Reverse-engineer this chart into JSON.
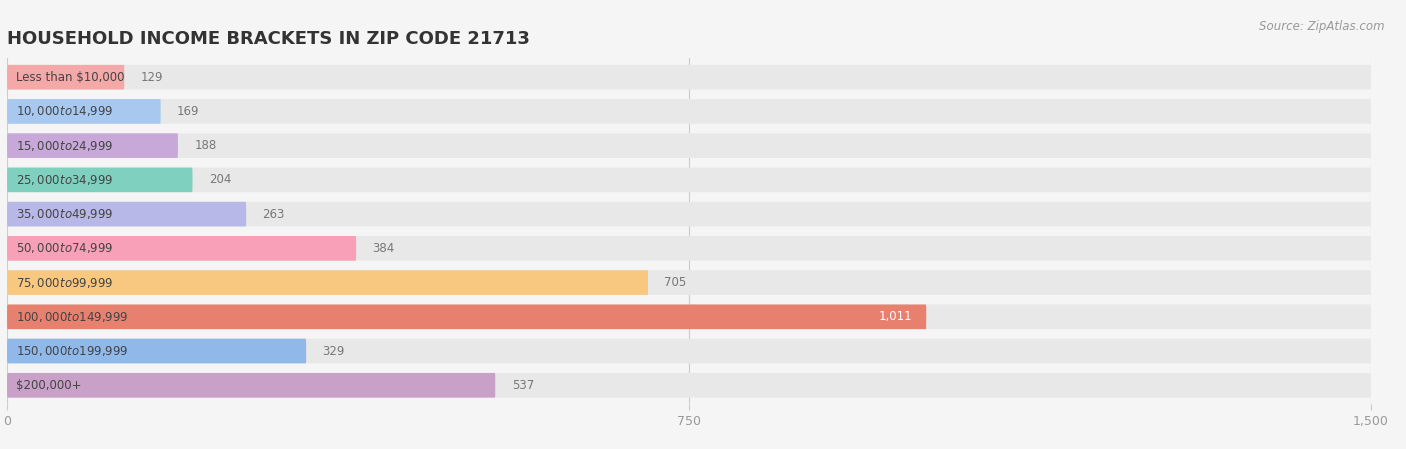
{
  "title": "HOUSEHOLD INCOME BRACKETS IN ZIP CODE 21713",
  "source": "Source: ZipAtlas.com",
  "categories": [
    "Less than $10,000",
    "$10,000 to $14,999",
    "$15,000 to $24,999",
    "$25,000 to $34,999",
    "$35,000 to $49,999",
    "$50,000 to $74,999",
    "$75,000 to $99,999",
    "$100,000 to $149,999",
    "$150,000 to $199,999",
    "$200,000+"
  ],
  "values": [
    129,
    169,
    188,
    204,
    263,
    384,
    705,
    1011,
    329,
    537
  ],
  "bar_colors": [
    "#f4a8a8",
    "#a8c8f0",
    "#c8a8d8",
    "#80d0c0",
    "#b8b8e8",
    "#f8a0b8",
    "#f8c880",
    "#e88070",
    "#90b8e8",
    "#c8a0c8"
  ],
  "background_color": "#f5f5f5",
  "bar_background_color": "#e8e8e8",
  "xlim": [
    0,
    1500
  ],
  "xticks": [
    0,
    750,
    1500
  ],
  "title_fontsize": 13,
  "label_fontsize": 8.5,
  "value_fontsize": 8.5,
  "source_fontsize": 8.5
}
